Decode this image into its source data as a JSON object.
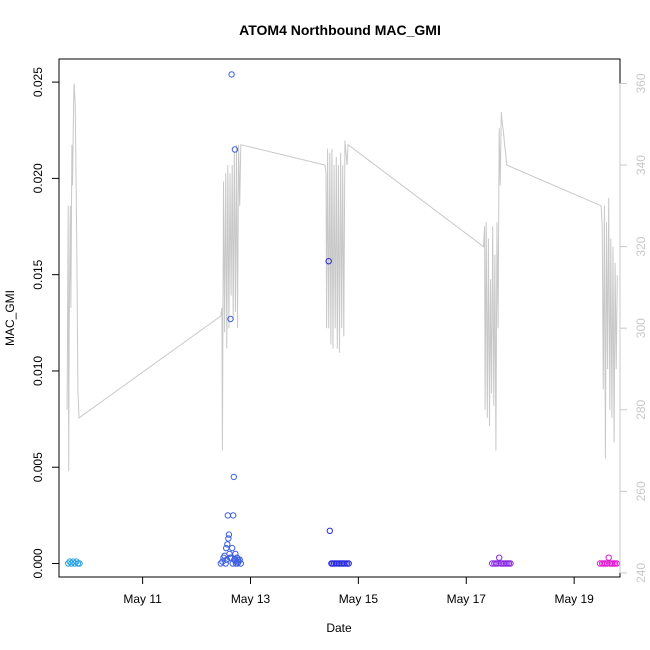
{
  "chart_data": {
    "type": "scatter",
    "title": "ATOM4 Northbound MAC_GMI",
    "xlabel": "Date",
    "ylabel": "MAC_GMI",
    "x_ticks": [
      "May 11",
      "May 13",
      "May 15",
      "May 17",
      "May 19"
    ],
    "x_tick_values": [
      11,
      13,
      15,
      17,
      19
    ],
    "xlim": [
      9.45,
      19.85
    ],
    "ylim": [
      -0.0007,
      0.0262
    ],
    "y_ticks": [
      "0.000",
      "0.005",
      "0.010",
      "0.015",
      "0.020",
      "0.025"
    ],
    "y_tick_values": [
      0,
      0.005,
      0.01,
      0.015,
      0.02,
      0.025
    ],
    "y2lim": [
      239,
      366
    ],
    "y2_ticks": [
      "240",
      "260",
      "280",
      "300",
      "320",
      "340",
      "360"
    ],
    "y2_tick_values": [
      240,
      260,
      280,
      300,
      320,
      340,
      360
    ],
    "colors": {
      "line": "#c8c8c8",
      "axis": "#000000",
      "right_axis": "#c8c8c8"
    },
    "series": [
      {
        "color": "#29a3e6",
        "x": [
          9.62,
          9.65,
          9.68,
          9.71,
          9.74,
          9.77,
          9.8,
          9.83
        ],
        "y": [
          0,
          0.0001,
          0,
          0.0001,
          0,
          0.0001,
          0,
          0
        ]
      },
      {
        "color": "#3d5fe0",
        "x": [
          12.45,
          12.48,
          12.5,
          12.52,
          12.54,
          12.55,
          12.56,
          12.57,
          12.58,
          12.59,
          12.6,
          12.61,
          12.62,
          12.63,
          12.64,
          12.65,
          12.66,
          12.67,
          12.68,
          12.69,
          12.7,
          12.71,
          12.72,
          12.73,
          12.74,
          12.75,
          12.76,
          12.77,
          12.78,
          12.8,
          12.82
        ],
        "y": [
          0,
          0.0001,
          0.0003,
          0.0004,
          0,
          0.0008,
          0.0002,
          0.001,
          0.0025,
          0.0013,
          0.0015,
          0.0005,
          0.0003,
          0.0127,
          0.0003,
          0.0254,
          0.0008,
          0,
          0.0025,
          0.0045,
          0.0002,
          0.0215,
          0.0005,
          0,
          0.0001,
          0.0003,
          0,
          0.0002,
          0.0001,
          0.0002,
          0
        ]
      },
      {
        "color": "#2b2be0",
        "x": [
          14.45,
          14.47,
          14.5,
          14.52,
          14.55,
          14.58,
          14.61,
          14.64,
          14.67,
          14.7,
          14.73,
          14.76,
          14.79,
          14.82
        ],
        "y": [
          0.0157,
          0.0017,
          0,
          0,
          0,
          0,
          0,
          0,
          0,
          0,
          0,
          0,
          0,
          0
        ]
      },
      {
        "color": "#8a2be2",
        "x": [
          17.48,
          17.52,
          17.55,
          17.58,
          17.61,
          17.64,
          17.67,
          17.7,
          17.73,
          17.76,
          17.79,
          17.82
        ],
        "y": [
          0,
          0,
          0,
          0,
          0.0003,
          0,
          0,
          0,
          0,
          0,
          0,
          0
        ]
      },
      {
        "color": "#e21bd1",
        "x": [
          19.48,
          19.52,
          19.55,
          19.58,
          19.61,
          19.64,
          19.67,
          19.7,
          19.73,
          19.76,
          19.79
        ],
        "y": [
          0,
          0,
          0,
          0,
          0,
          0.0003,
          0,
          0,
          0,
          0,
          0
        ]
      }
    ],
    "secondary_line": {
      "axis": "right",
      "x": [
        9.6,
        9.62,
        9.63,
        9.64,
        9.66,
        9.67,
        9.69,
        9.7,
        9.72,
        9.73,
        9.75,
        9.76,
        9.78,
        9.8,
        9.82,
        12.45,
        12.47,
        12.48,
        12.5,
        12.52,
        12.54,
        12.56,
        12.58,
        12.6,
        12.62,
        12.64,
        12.66,
        12.68,
        12.7,
        12.72,
        12.74,
        12.76,
        12.78,
        12.8,
        12.82,
        14.38,
        14.4,
        14.41,
        14.43,
        14.45,
        14.47,
        14.49,
        14.51,
        14.53,
        14.55,
        14.57,
        14.59,
        14.61,
        14.63,
        14.65,
        14.67,
        14.69,
        14.71,
        14.73,
        14.75,
        14.77,
        14.79,
        14.81,
        17.32,
        17.34,
        17.35,
        17.37,
        17.39,
        17.41,
        17.43,
        17.45,
        17.47,
        17.49,
        17.51,
        17.53,
        17.55,
        17.57,
        17.59,
        17.61,
        17.63,
        17.65,
        17.67,
        17.69,
        17.71,
        17.73,
        17.75,
        19.5,
        19.52,
        19.54,
        19.56,
        19.58,
        19.6,
        19.62,
        19.64,
        19.66,
        19.68,
        19.7,
        19.72,
        19.74,
        19.76,
        19.78,
        19.8
      ],
      "y": [
        280,
        330,
        265,
        300,
        330,
        305,
        345,
        335,
        355,
        360,
        355,
        345,
        320,
        285,
        278,
        303,
        305,
        270,
        336,
        299,
        338,
        295,
        340,
        300,
        338,
        308,
        340,
        302,
        343,
        304,
        345,
        300,
        345,
        330,
        345,
        340,
        338,
        300,
        344,
        300,
        343,
        296,
        344,
        295,
        340,
        300,
        342,
        295,
        340,
        294,
        343,
        300,
        340,
        298,
        346,
        343,
        340,
        345,
        320,
        325,
        280,
        326,
        278,
        322,
        276,
        312,
        284,
        325,
        281,
        318,
        270,
        326,
        300,
        349,
        335,
        353,
        350,
        348,
        345,
        343,
        340,
        330,
        325,
        285,
        330,
        268,
        326,
        290,
        332,
        280,
        322,
        278,
        320,
        272,
        316,
        290,
        313
      ]
    }
  }
}
